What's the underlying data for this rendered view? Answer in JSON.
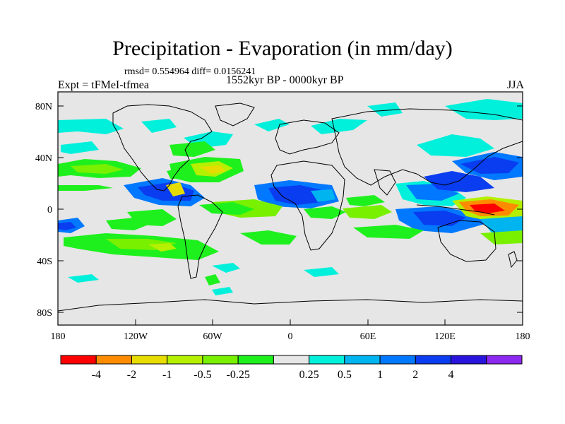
{
  "header": {
    "title": "Precipitation - Evaporation (in mm/day)",
    "stats": "rmsd= 0.554964 diff= 0.0156241",
    "experiment": "Expt = tFMeI-tfmea",
    "period": "1552kyr BP - 0000kyr BP",
    "season": "JJA"
  },
  "map": {
    "lat_labels": [
      "80N",
      "40N",
      "0",
      "40S",
      "80S"
    ],
    "lon_labels": [
      "180",
      "120W",
      "60W",
      "0",
      "60E",
      "120E",
      "180"
    ],
    "background_color": "#e6e6e6"
  },
  "colorbar": {
    "colors": [
      "#ff0000",
      "#ff8c00",
      "#e6dc00",
      "#b4f000",
      "#78f000",
      "#1ef01e",
      "#e6e6e6",
      "#00f0dc",
      "#00b4f0",
      "#0078ff",
      "#0a3cf0",
      "#2814dc",
      "#8c28f0"
    ],
    "labels": [
      "-4",
      "-2",
      "-1",
      "-0.5",
      "-0.25",
      "0.25",
      "0.5",
      "1",
      "2",
      "4"
    ]
  }
}
